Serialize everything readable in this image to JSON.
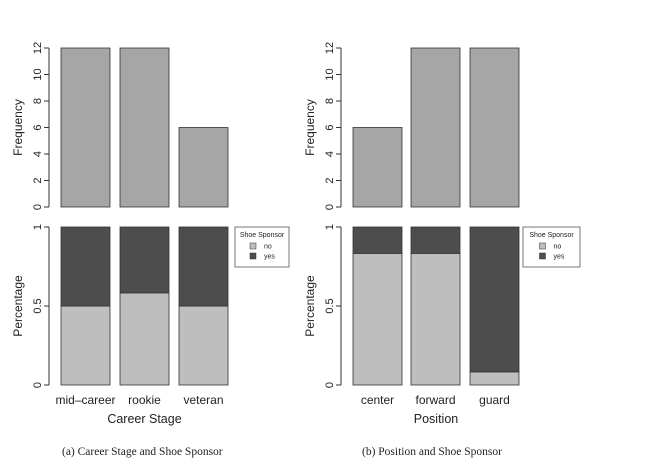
{
  "chart_data": [
    {
      "type": "bar",
      "caption": "(a) Career Stage and Shoe Sponsor",
      "xlabel": "Career Stage",
      "categories": [
        "mid–career",
        "rookie",
        "veteran"
      ],
      "frequency": {
        "ylabel": "Frequency",
        "values": [
          12,
          12,
          6
        ],
        "ylim": [
          0,
          12
        ],
        "yticks": [
          "0",
          "2",
          "4",
          "6",
          "8",
          "10",
          "12"
        ],
        "color": "#a6a6a6"
      },
      "percentage": {
        "type": "stacked-bar",
        "ylabel": "Percentage",
        "ylim": [
          0,
          1
        ],
        "yticks": [
          "0",
          "0.5",
          "1"
        ],
        "series": [
          {
            "name": "no",
            "values": [
              0.5,
              0.583,
              0.5
            ],
            "color": "#bebebe"
          },
          {
            "name": "yes",
            "values": [
              0.5,
              0.417,
              0.5
            ],
            "color": "#4d4d4d"
          }
        ],
        "legend": {
          "title": "Shoe Sponsor",
          "placement": "right"
        }
      }
    },
    {
      "type": "bar",
      "caption": "(b) Position and Shoe Sponsor",
      "xlabel": "Position",
      "categories": [
        "center",
        "forward",
        "guard"
      ],
      "frequency": {
        "ylabel": "Frequency",
        "values": [
          6,
          12,
          12
        ],
        "ylim": [
          0,
          12
        ],
        "yticks": [
          "0",
          "2",
          "4",
          "6",
          "8",
          "10",
          "12"
        ],
        "color": "#a6a6a6"
      },
      "percentage": {
        "type": "stacked-bar",
        "ylabel": "Percentage",
        "ylim": [
          0,
          1
        ],
        "yticks": [
          "0",
          "0.5",
          "1"
        ],
        "series": [
          {
            "name": "no",
            "values": [
              0.833,
              0.833,
              0.083
            ],
            "color": "#bebebe"
          },
          {
            "name": "yes",
            "values": [
              0.167,
              0.167,
              0.917
            ],
            "color": "#4d4d4d"
          }
        ],
        "legend": {
          "title": "Shoe Sponsor",
          "placement": "right"
        }
      }
    }
  ]
}
